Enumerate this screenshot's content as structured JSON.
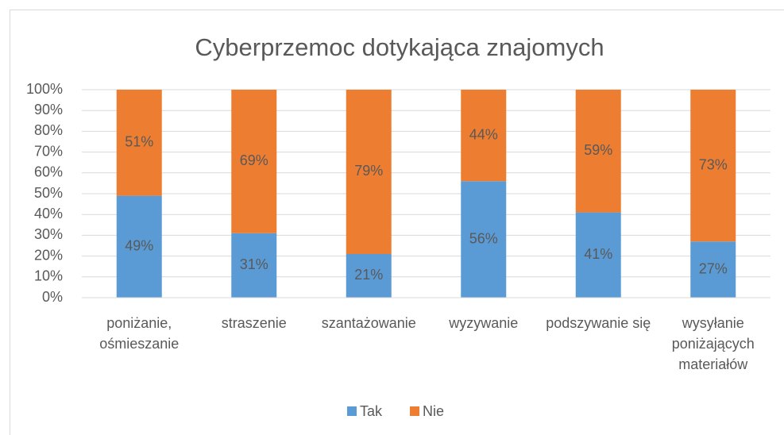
{
  "chart_data": {
    "type": "stacked_bar_100",
    "title": "Cyberprzemoc dotykająca znajomych",
    "categories": [
      "poniżanie, ośmieszanie",
      "straszenie",
      "szantażowanie",
      "wyzywanie",
      "podszywanie się",
      "wysyłanie poniżających materiałów"
    ],
    "series": [
      {
        "name": "Tak",
        "color": "#5b9bd5",
        "values": [
          49,
          31,
          21,
          56,
          41,
          27
        ],
        "value_labels": [
          "49%",
          "31%",
          "21%",
          "56%",
          "41%",
          "27%"
        ]
      },
      {
        "name": "Nie",
        "color": "#ed7d31",
        "values": [
          51,
          69,
          79,
          44,
          59,
          73
        ],
        "value_labels": [
          "51%",
          "69%",
          "79%",
          "44%",
          "59%",
          "73%"
        ]
      }
    ],
    "ylim": [
      0,
      100
    ],
    "yticks": [
      {
        "value": 0,
        "label": "0%"
      },
      {
        "value": 10,
        "label": "10%"
      },
      {
        "value": 20,
        "label": "20%"
      },
      {
        "value": 30,
        "label": "30%"
      },
      {
        "value": 40,
        "label": "40%"
      },
      {
        "value": 50,
        "label": "50%"
      },
      {
        "value": 60,
        "label": "60%"
      },
      {
        "value": 70,
        "label": "70%"
      },
      {
        "value": 80,
        "label": "80%"
      },
      {
        "value": 90,
        "label": "90%"
      },
      {
        "value": 100,
        "label": "100%"
      }
    ],
    "grid": true,
    "legend": "bottom"
  }
}
